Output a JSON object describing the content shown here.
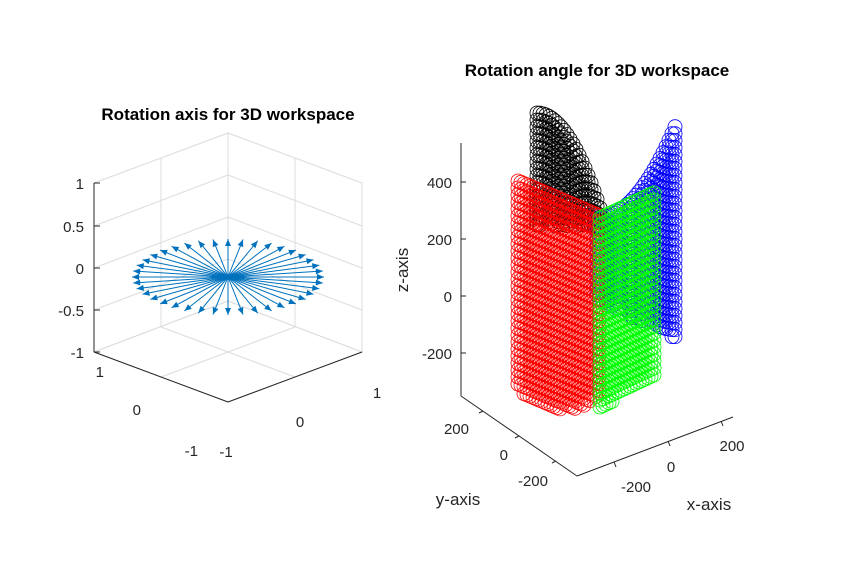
{
  "chart_data": [
    {
      "type": "scatter",
      "title": "Rotation axis for 3D workspace",
      "z_ticks": [
        "1",
        "0.5",
        "0",
        "-0.5",
        "-1"
      ],
      "y_ticks": [
        "1",
        "0",
        "-1"
      ],
      "x_ticks": [
        "-1",
        "0",
        "1"
      ],
      "zlim": [
        -1,
        1
      ],
      "xlim": [
        -1,
        1
      ],
      "ylim": [
        -1,
        1
      ],
      "grid": true,
      "arrow_count": 40,
      "arrow_length": 1,
      "arrow_z": 0,
      "color": "#0072BD"
    },
    {
      "type": "scatter",
      "title": "Rotation angle for 3D workspace",
      "xlabel": "x-axis",
      "ylabel": "y-axis",
      "zlabel": "z-axis",
      "z_ticks": [
        "400",
        "200",
        "0",
        "-200"
      ],
      "y_ticks": [
        "200",
        "0",
        "-200"
      ],
      "x_ticks": [
        "-200",
        "0",
        "200"
      ],
      "zlim": [
        -300,
        500
      ],
      "grid": false,
      "series_colors": [
        "#000000",
        "#0000ff",
        "#ff0000",
        "#00ff00"
      ]
    }
  ]
}
